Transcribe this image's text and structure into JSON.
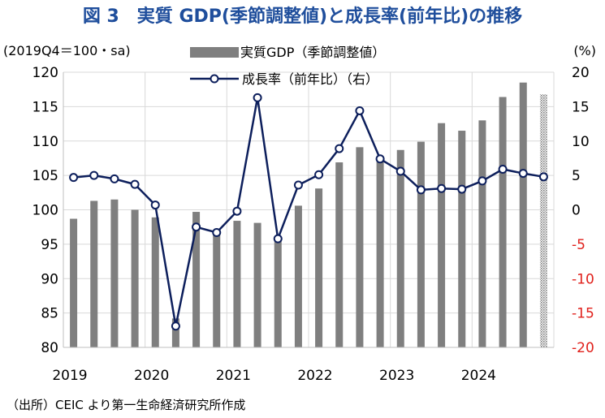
{
  "title": "図 3　実質 GDP(季節調整値)と成長率(前年比)の推移",
  "source": "（出所）CEIC より第一生命経済研究所作成",
  "colors": {
    "bar": "#7f7f7f",
    "line": "#0d1f5c",
    "grid": "#d9d9d9",
    "negative_tick": "#e0201b",
    "title": "#1f4e9c"
  },
  "chart_data": {
    "type": "bar",
    "title": "図 3　実質 GDP(季節調整値)と成長率(前年比)の推移",
    "left_axis": {
      "label": "(2019Q4＝100・sa)",
      "ylim": [
        80,
        120
      ],
      "ticks": [
        80,
        85,
        90,
        95,
        100,
        105,
        110,
        115,
        120
      ]
    },
    "right_axis": {
      "label": "(%)",
      "ylim": [
        -20,
        20
      ],
      "ticks": [
        -20,
        -15,
        -10,
        -5,
        0,
        5,
        10,
        15,
        20
      ]
    },
    "x_tick_labels": [
      "2019",
      "2020",
      "2021",
      "2022",
      "2023",
      "2024"
    ],
    "grid": true,
    "legend_position": "top-center",
    "categories": [
      "2019Q1",
      "2019Q2",
      "2019Q3",
      "2019Q4",
      "2020Q1",
      "2020Q2",
      "2020Q3",
      "2020Q4",
      "2021Q1",
      "2021Q2",
      "2021Q3",
      "2021Q4",
      "2022Q1",
      "2022Q2",
      "2022Q3",
      "2022Q4",
      "2023Q1",
      "2023Q2",
      "2023Q3",
      "2023Q4",
      "2024Q1",
      "2024Q2",
      "2024Q3",
      "2024Q4"
    ],
    "series": [
      {
        "name": "実質GDP（季節調整値）",
        "type": "bar",
        "axis": "left",
        "values": [
          98.7,
          101.3,
          101.5,
          100.0,
          98.9,
          84.2,
          99.7,
          96.7,
          98.4,
          98.1,
          96.0,
          100.6,
          103.1,
          106.9,
          109.1,
          107.8,
          108.7,
          109.9,
          112.6,
          111.5,
          113.0,
          116.4,
          118.5,
          116.8
        ],
        "last_is_hatched": true
      },
      {
        "name": "成長率（前年比）（右）",
        "type": "line",
        "axis": "right",
        "values": [
          4.7,
          5.0,
          4.5,
          3.7,
          0.7,
          -16.9,
          -2.5,
          -3.3,
          -0.2,
          16.3,
          -4.2,
          3.6,
          5.1,
          8.9,
          14.4,
          7.4,
          5.6,
          2.9,
          3.1,
          3.0,
          4.2,
          5.9,
          5.3,
          4.8
        ]
      }
    ]
  }
}
